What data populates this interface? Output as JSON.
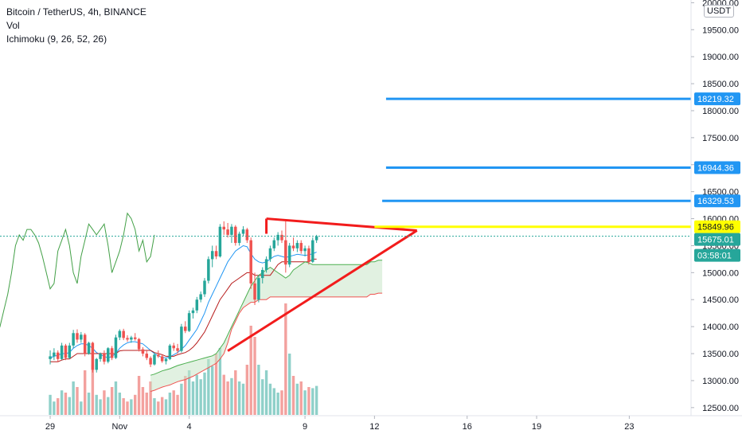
{
  "legend": {
    "symbol": "Bitcoin / TetherUS, 4h, BINANCE",
    "vol": "Vol",
    "ichimoku": "Ichimoku (9, 26, 52, 26)"
  },
  "currency_button": "USDT",
  "colors": {
    "up": "#26a69a",
    "down": "#ef5350",
    "vol_up": "#8fd0c9",
    "vol_down": "#f3a19e",
    "tenkan": "#2196f3",
    "kijun": "#b71c1c",
    "chikou": "#43a047",
    "span_a": "#4caf50",
    "span_b": "#ef5350",
    "cloud": "#c8e6c9",
    "triangle": "#f21c1c",
    "target": "#2196f3",
    "level_line": "#ffff00",
    "current_price": "#26a69a"
  },
  "chart_data": {
    "type": "candlestick",
    "symbol": "Bitcoin / TetherUS",
    "timeframe": "4h",
    "exchange": "BINANCE",
    "yaxis_ticks": [
      "20000.00",
      "19500.00",
      "19000.00",
      "18500.00",
      "18000.00",
      "17500.00",
      "17000.00",
      "16500.00",
      "16000.00",
      "15500.00",
      "15000.00",
      "14500.00",
      "14000.00",
      "13500.00",
      "13000.00",
      "12500.00"
    ],
    "ylim": [
      12350,
      20050
    ],
    "xaxis_ticks": [
      {
        "label": "29",
        "x": 0
      },
      {
        "label": "Nov",
        "x": 18
      },
      {
        "label": "4",
        "x": 36
      },
      {
        "label": "9",
        "x": 66
      },
      {
        "label": "12",
        "x": 84
      },
      {
        "label": "16",
        "x": 108
      },
      {
        "label": "19",
        "x": 126
      },
      {
        "label": "23",
        "x": 150
      }
    ],
    "xlim": [
      -13,
      166
    ],
    "price_tags": [
      {
        "value": "18219.32",
        "color": "#2196f3",
        "text_color": "#ffffff"
      },
      {
        "value": "16944.36",
        "color": "#2196f3",
        "text_color": "#ffffff"
      },
      {
        "value": "16329.53",
        "color": "#2196f3",
        "text_color": "#ffffff"
      },
      {
        "value": "15849.96",
        "color": "#ffff00",
        "text_color": "#131722"
      },
      {
        "value": "15675.01",
        "color": "#26a69a",
        "text_color": "#ffffff"
      },
      {
        "value": "03:58:01",
        "color": "#26a69a",
        "text_color": "#ffffff"
      }
    ],
    "target_lines": [
      {
        "price": 18219.32,
        "x_start": 87
      },
      {
        "price": 16944.36,
        "x_start": 87
      },
      {
        "price": 16329.53,
        "x_start": 86
      }
    ],
    "level_line": {
      "price": 15849.96,
      "x_start": 84
    },
    "current_price": 15675.01,
    "triangle": {
      "top": [
        [
          56,
          16000
        ],
        [
          95,
          15780
        ]
      ],
      "bottom": [
        [
          46,
          13550
        ],
        [
          95,
          15780
        ]
      ],
      "left_edge": [
        [
          56,
          16000
        ],
        [
          56,
          15720
        ]
      ]
    },
    "candles": [
      [
        13400,
        13560,
        13300,
        13450
      ],
      [
        13450,
        13600,
        13380,
        13520
      ],
      [
        13520,
        13560,
        13340,
        13400
      ],
      [
        13400,
        13700,
        13380,
        13650
      ],
      [
        13650,
        13680,
        13380,
        13420
      ],
      [
        13420,
        13700,
        13400,
        13650
      ],
      [
        13650,
        13940,
        13600,
        13880
      ],
      [
        13880,
        13950,
        13700,
        13760
      ],
      [
        13760,
        13900,
        13700,
        13850
      ],
      [
        13850,
        13880,
        13450,
        13500
      ],
      [
        13500,
        13720,
        13480,
        13700
      ],
      [
        13700,
        13720,
        13150,
        13200
      ],
      [
        13200,
        13420,
        13150,
        13400
      ],
      [
        13400,
        13520,
        13350,
        13500
      ],
      [
        13500,
        13560,
        13300,
        13350
      ],
      [
        13350,
        13620,
        13320,
        13600
      ],
      [
        13600,
        13640,
        13380,
        13420
      ],
      [
        13420,
        13850,
        13400,
        13800
      ],
      [
        13800,
        13950,
        13750,
        13920
      ],
      [
        13920,
        13960,
        13750,
        13790
      ],
      [
        13790,
        13840,
        13720,
        13760
      ],
      [
        13760,
        13830,
        13700,
        13800
      ],
      [
        13800,
        13880,
        13740,
        13770
      ],
      [
        13770,
        13790,
        13540,
        13580
      ],
      [
        13580,
        13620,
        13450,
        13500
      ],
      [
        13500,
        13560,
        13380,
        13420
      ],
      [
        13420,
        13450,
        13250,
        13300
      ],
      [
        13300,
        13520,
        13280,
        13480
      ],
      [
        13480,
        13560,
        13420,
        13450
      ],
      [
        13450,
        13480,
        13330,
        13360
      ],
      [
        13360,
        13420,
        13300,
        13400
      ],
      [
        13400,
        13680,
        13380,
        13650
      ],
      [
        13650,
        13700,
        13550,
        13600
      ],
      [
        13600,
        13680,
        13500,
        13550
      ],
      [
        13550,
        14050,
        13520,
        14000
      ],
      [
        14000,
        14100,
        13880,
        13920
      ],
      [
        13920,
        14300,
        13900,
        14250
      ],
      [
        14250,
        14350,
        14150,
        14300
      ],
      [
        14300,
        14550,
        14250,
        14500
      ],
      [
        14500,
        14650,
        14450,
        14600
      ],
      [
        14600,
        14900,
        14550,
        14850
      ],
      [
        14850,
        15300,
        14800,
        15250
      ],
      [
        15250,
        15500,
        15100,
        15400
      ],
      [
        15400,
        15500,
        15250,
        15300
      ],
      [
        15300,
        15900,
        15280,
        15850
      ],
      [
        15850,
        15950,
        15700,
        15800
      ],
      [
        15800,
        15920,
        15650,
        15700
      ],
      [
        15700,
        15900,
        15550,
        15850
      ],
      [
        15850,
        15880,
        15500,
        15550
      ],
      [
        15550,
        15760,
        15500,
        15720
      ],
      [
        15720,
        15860,
        15680,
        15800
      ],
      [
        15800,
        15830,
        15550,
        15600
      ],
      [
        15600,
        15650,
        14700,
        14800
      ],
      [
        14800,
        15000,
        14400,
        14500
      ],
      [
        14500,
        14950,
        14450,
        14900
      ],
      [
        14900,
        15100,
        14800,
        15050
      ],
      [
        15050,
        15300,
        15000,
        15250
      ],
      [
        15250,
        15500,
        15200,
        15450
      ],
      [
        15450,
        15650,
        15400,
        15600
      ],
      [
        15600,
        15750,
        15500,
        15700
      ],
      [
        15700,
        15780,
        15550,
        15600
      ],
      [
        15600,
        15950,
        15000,
        15150
      ],
      [
        15150,
        15550,
        15100,
        15500
      ],
      [
        15500,
        15650,
        15400,
        15450
      ],
      [
        15450,
        15600,
        15380,
        15550
      ],
      [
        15550,
        15600,
        15350,
        15400
      ],
      [
        15400,
        15500,
        15300,
        15450
      ],
      [
        15450,
        15500,
        15150,
        15200
      ],
      [
        15200,
        15650,
        15180,
        15600
      ],
      [
        15600,
        15700,
        15550,
        15675
      ]
    ],
    "volume": [
      0.18,
      0.12,
      0.15,
      0.22,
      0.2,
      0.16,
      0.3,
      0.25,
      0.12,
      0.4,
      0.2,
      0.45,
      0.18,
      0.14,
      0.22,
      0.16,
      0.25,
      0.3,
      0.2,
      0.15,
      0.12,
      0.14,
      0.18,
      0.35,
      0.25,
      0.2,
      0.3,
      0.15,
      0.12,
      0.16,
      0.14,
      0.2,
      0.22,
      0.18,
      0.28,
      0.35,
      0.4,
      0.3,
      0.36,
      0.32,
      0.38,
      0.5,
      0.44,
      0.55,
      0.6,
      0.36,
      0.3,
      0.33,
      0.4,
      0.3,
      0.28,
      0.45,
      0.8,
      0.7,
      0.45,
      0.32,
      0.4,
      0.28,
      0.24,
      0.2,
      0.22,
      1.0,
      0.55,
      0.35,
      0.28,
      0.3,
      0.22,
      0.25,
      0.24,
      0.26
    ],
    "series": [
      {
        "name": "Tenkan",
        "values": [
          13420,
          13450,
          13470,
          13500,
          13500,
          13520,
          13600,
          13650,
          13680,
          13680,
          13650,
          13600,
          13520,
          13480,
          13450,
          13420,
          13450,
          13500,
          13600,
          13660,
          13700,
          13720,
          13720,
          13700,
          13680,
          13620,
          13560,
          13500,
          13460,
          13430,
          13420,
          13440,
          13480,
          13520,
          13580,
          13650,
          13750,
          13850,
          13950,
          14100,
          14250,
          14450,
          14600,
          14750,
          14900,
          15050,
          15200,
          15300,
          15400,
          15450,
          15500,
          15480,
          15350,
          15250,
          15200,
          15180,
          15200,
          15250,
          15300,
          15320,
          15300,
          15280,
          15300,
          15320,
          15340,
          15330,
          15320,
          15330,
          15350,
          15380
        ]
      },
      {
        "name": "Kijun",
        "values": [
          13350,
          13350,
          13350,
          13380,
          13400,
          13400,
          13450,
          13500,
          13500,
          13500,
          13500,
          13500,
          13500,
          13500,
          13500,
          13500,
          13500,
          13500,
          13550,
          13560,
          13560,
          13560,
          13560,
          13560,
          13560,
          13560,
          13560,
          13520,
          13500,
          13480,
          13450,
          13450,
          13450,
          13480,
          13500,
          13520,
          13560,
          13620,
          13700,
          13800,
          13900,
          14050,
          14200,
          14350,
          14500,
          14600,
          14700,
          14800,
          14850,
          14900,
          14950,
          15000,
          15000,
          14950,
          14950,
          14950,
          14950,
          14950,
          15050,
          15150,
          15200,
          15200,
          15200,
          15200,
          15200,
          15200,
          15200,
          15200,
          15250,
          15250
        ]
      },
      {
        "name": "Span A",
        "start": 26,
        "values": [
          13100,
          13120,
          13150,
          13180,
          13200,
          13220,
          13250,
          13280,
          13300,
          13320,
          13340,
          13360,
          13380,
          13400,
          13420,
          13440,
          13460,
          13500,
          13600,
          13700,
          13850,
          14000,
          14150,
          14300,
          14450,
          14600,
          14750,
          14850,
          14950,
          15000,
          15050,
          15100,
          15050,
          15000,
          14950,
          14900,
          14950,
          15050,
          15100,
          15150,
          15200,
          15180,
          15150,
          15150,
          15150,
          15150,
          15150,
          15150,
          15150,
          15150,
          15150,
          15150,
          15150,
          15150,
          15150,
          15150,
          15150,
          15200,
          15200,
          15230,
          15230
        ]
      },
      {
        "name": "Span B",
        "start": 26,
        "values": [
          12800,
          12820,
          12850,
          12880,
          12900,
          12920,
          12950,
          12980,
          13000,
          13020,
          13050,
          13080,
          13120,
          13160,
          13200,
          13240,
          13280,
          13320,
          13400,
          13500,
          13700,
          13950,
          14100,
          14250,
          14350,
          14400,
          14450,
          14450,
          14500,
          14500,
          14500,
          14550,
          14550,
          14550,
          14550,
          14550,
          14550,
          14550,
          14550,
          14550,
          14550,
          14550,
          14550,
          14550,
          14550,
          14550,
          14550,
          14550,
          14550,
          14550,
          14550,
          14550,
          14550,
          14550,
          14550,
          14550,
          14550,
          14600,
          14600,
          14620,
          14620
        ]
      },
      {
        "name": "Chikou",
        "start": -26,
        "values": [
          13250,
          13400,
          13550,
          13420,
          13650,
          13700,
          13750,
          13900,
          13880,
          14000,
          13900,
          14200,
          14100,
          14000,
          14300,
          14600,
          15000,
          15500,
          15700,
          15600,
          15800,
          15800,
          15700,
          15550,
          15300,
          15000,
          14700,
          14800,
          15400,
          15600,
          15800,
          15500,
          15000,
          14800,
          15300,
          15600,
          15900,
          15800,
          15700,
          15800,
          15900,
          15500,
          15000,
          15200,
          15400,
          15700,
          16100,
          16000,
          15800,
          15400,
          15600,
          15200,
          15300,
          15700
        ]
      }
    ]
  }
}
